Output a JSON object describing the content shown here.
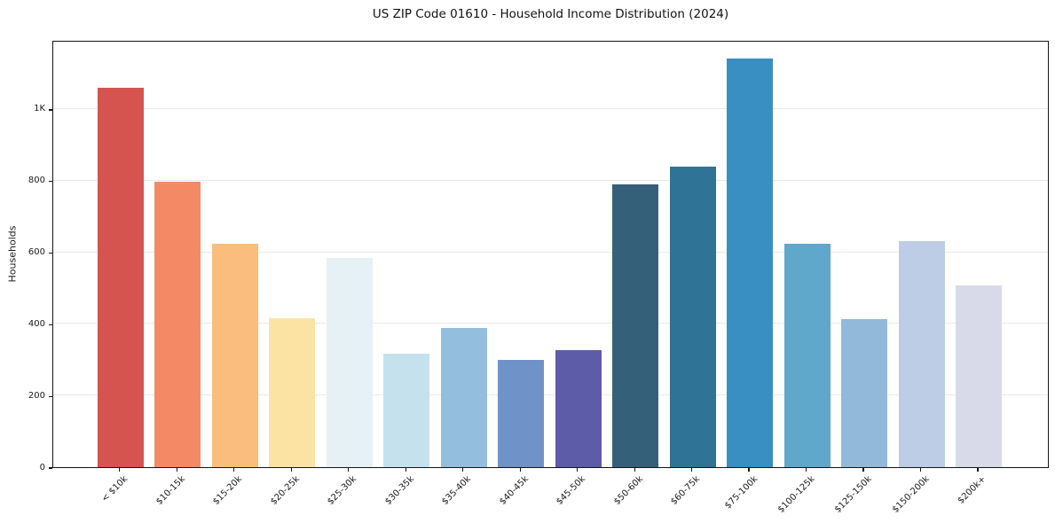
{
  "chart_data": {
    "type": "bar",
    "title": "US ZIP Code 01610 - Household Income Distribution (2024)",
    "xlabel": "",
    "ylabel": "Households",
    "categories": [
      "< $10k",
      "$10-15k",
      "$15-20k",
      "$20-25k",
      "$25-30k",
      "$30-35k",
      "$35-40k",
      "$40-45k",
      "$45-50k",
      "$50-60k",
      "$60-75k",
      "$75-100k",
      "$100-125k",
      "$125-150k",
      "$150-200k",
      "$200k+"
    ],
    "values": [
      1060,
      798,
      625,
      415,
      583,
      318,
      388,
      300,
      327,
      790,
      839,
      1140,
      623,
      413,
      632,
      507
    ],
    "bar_colors": [
      "#d5544f",
      "#f48a65",
      "#fabd7e",
      "#fbe3a3",
      "#e6f1f6",
      "#c6e1ee",
      "#94bedd",
      "#6f93c9",
      "#5c5ca8",
      "#35607a",
      "#2f7397",
      "#3a8fc2",
      "#5fa7cb",
      "#93b9da",
      "#bccde5",
      "#d9dae9"
    ],
    "yticks": [
      {
        "value": 0,
        "label": "0"
      },
      {
        "value": 200,
        "label": "200"
      },
      {
        "value": 400,
        "label": "400"
      },
      {
        "value": 600,
        "label": "600"
      },
      {
        "value": 800,
        "label": "800"
      },
      {
        "value": 1000,
        "label": "1K"
      }
    ],
    "ylim": [
      0,
      1193
    ],
    "grid": "horizontal-only",
    "legend": "none",
    "background": "#ffffff"
  }
}
